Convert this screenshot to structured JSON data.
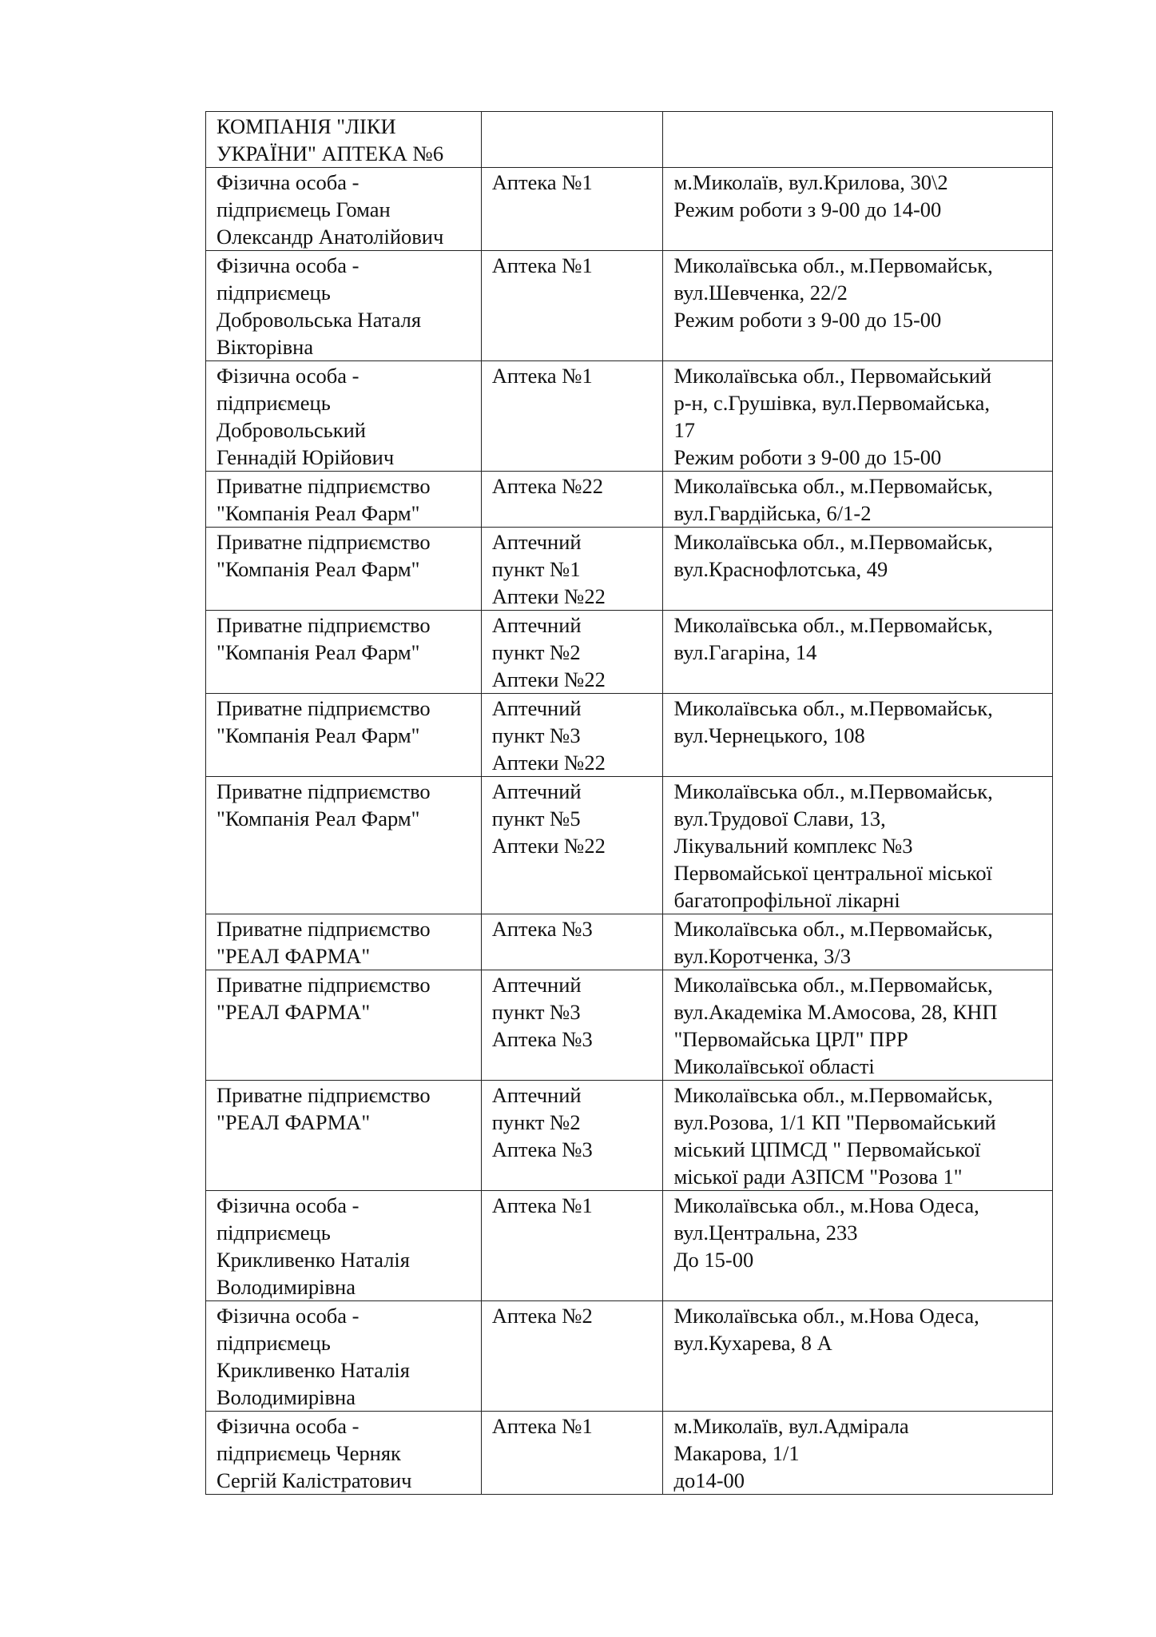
{
  "table": {
    "rows": [
      {
        "owner": "КОМПАНІЯ \"ЛІКИ\nУКРАЇНИ\" АПТЕКА №6",
        "pharmacy": "",
        "address": ""
      },
      {
        "owner": "Фізична особа -\nпідприємець Гоман\nОлександр Анатолійович",
        "pharmacy": "Аптека №1",
        "address": "м.Миколаїв, вул.Крилова, 30\\2\nРежим роботи з 9-00 до 14-00"
      },
      {
        "owner": "Фізична особа -\nпідприємець\nДобровольська Наталя\nВікторівна",
        "pharmacy": "Аптека №1",
        "address": "Миколаївська обл., м.Первомайськ,\nвул.Шевченка, 22/2\nРежим роботи з 9-00 до 15-00"
      },
      {
        "owner": "Фізична особа -\nпідприємець\nДобровольський\nГеннадій Юрійович",
        "pharmacy": "Аптека №1",
        "address": "Миколаївська обл., Первомайський\nр-н, с.Грушівка, вул.Первомайська,\n17\nРежим роботи з 9-00 до 15-00"
      },
      {
        "owner": "Приватне підприємство\n\"Компанія Реал Фарм\"",
        "pharmacy": "Аптека №22",
        "address": "Миколаївська обл., м.Первомайськ,\nвул.Гвардійська, 6/1-2"
      },
      {
        "owner": "Приватне підприємство\n\"Компанія Реал Фарм\"",
        "pharmacy": "Аптечний\nпункт №1\nАптеки №22",
        "address": "Миколаївська обл., м.Первомайськ,\nвул.Краснофлотська, 49"
      },
      {
        "owner": "Приватне підприємство\n\"Компанія Реал Фарм\"",
        "pharmacy": "Аптечний\nпункт №2\nАптеки №22",
        "address": "Миколаївська обл., м.Первомайськ,\nвул.Гагаріна, 14"
      },
      {
        "owner": "Приватне підприємство\n\"Компанія Реал Фарм\"",
        "pharmacy": "Аптечний\nпункт №3\nАптеки №22",
        "address": "Миколаївська обл., м.Первомайськ,\nвул.Чернецького, 108"
      },
      {
        "owner": "Приватне підприємство\n\"Компанія Реал Фарм\"",
        "pharmacy": "Аптечний\nпункт №5\nАптеки №22",
        "address": "Миколаївська обл., м.Первомайськ,\nвул.Трудової Слави, 13,\nЛікувальний комплекс №3\nПервомайської центральної міської\nбагатопрофільної лікарні"
      },
      {
        "owner": "Приватне підприємство\n\"РЕАЛ ФАРМА\"",
        "pharmacy": "Аптека №3",
        "address": "Миколаївська обл., м.Первомайськ,\nвул.Коротченка, 3/3"
      },
      {
        "owner": "Приватне підприємство\n\"РЕАЛ ФАРМА\"",
        "pharmacy": "Аптечний\nпункт №3\nАптека №3",
        "address": "Миколаївська обл., м.Первомайськ,\nвул.Академіка М.Амосова, 28, КНП\n\"Первомайська ЦРЛ\"  ПРР\nМиколаївської області"
      },
      {
        "owner": "Приватне підприємство\n\"РЕАЛ ФАРМА\"",
        "pharmacy": "Аптечний\nпункт №2\nАптека №3",
        "address": "Миколаївська обл., м.Первомайськ,\nвул.Розова, 1/1 КП \"Первомайський\nміський ЦПМСД \" Первомайської\nміської ради АЗПСМ \"Розова 1\""
      },
      {
        "owner": "Фізична особа -\nпідприємець\nКрикливенко Наталія\nВолодимирівна",
        "pharmacy": "Аптека №1",
        "address": "Миколаївська обл., м.Нова Одеса,\nвул.Центральна, 233\nДо 15-00"
      },
      {
        "owner": "Фізична особа -\nпідприємець\nКрикливенко Наталія\nВолодимирівна",
        "pharmacy": "Аптека №2",
        "address": "Миколаївська обл., м.Нова Одеса,\nвул.Кухарева, 8 А"
      },
      {
        "owner": "Фізична особа -\nпідприємець Черняк\nСергій Калістратович",
        "pharmacy": "Аптека №1",
        "address": "м.Миколаїв, вул.Адмірала\nМакарова, 1/1\nдо14-00"
      }
    ]
  }
}
